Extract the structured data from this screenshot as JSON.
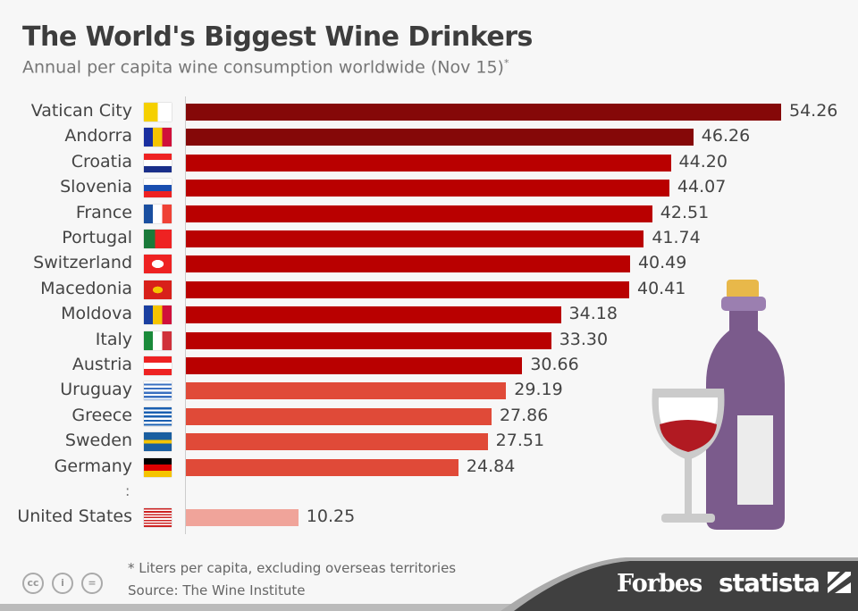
{
  "title": "The World's Biggest Wine Drinkers",
  "subtitle": "Annual per capita wine consumption worldwide (Nov 15)",
  "subtitle_mark": "*",
  "chart_data": {
    "type": "bar",
    "orientation": "horizontal",
    "title": "The World's Biggest Wine Drinkers",
    "xlabel": "",
    "ylabel": "Liters per capita",
    "xlim": [
      0,
      54.26
    ],
    "categories": [
      "Vatican City",
      "Andorra",
      "Croatia",
      "Slovenia",
      "France",
      "Portugal",
      "Switzerland",
      "Macedonia",
      "Moldova",
      "Italy",
      "Austria",
      "Uruguay",
      "Greece",
      "Sweden",
      "Germany",
      "United States"
    ],
    "values": [
      54.26,
      46.26,
      44.2,
      44.07,
      42.51,
      41.74,
      40.49,
      40.41,
      34.18,
      33.3,
      30.66,
      29.19,
      27.86,
      27.51,
      24.84,
      10.25
    ],
    "value_labels": [
      "54.26",
      "46.26",
      "44.20",
      "44.07",
      "42.51",
      "41.74",
      "40.49",
      "40.41",
      "34.18",
      "33.30",
      "30.66",
      "29.19",
      "27.86",
      "27.51",
      "24.84",
      "10.25"
    ],
    "colors": [
      "#850808",
      "#850808",
      "#b90000",
      "#b90000",
      "#b90000",
      "#b90000",
      "#b90000",
      "#b90000",
      "#b90000",
      "#b90000",
      "#b90000",
      "#e04a38",
      "#e04a38",
      "#e04a38",
      "#e04a38",
      "#f0a49a"
    ],
    "gap_marker": ":"
  },
  "footer": {
    "note": "* Liters per capita, excluding overseas territories",
    "source": "Source: The Wine Institute",
    "brand1": "Forbes",
    "brand2": "statista",
    "cc": "cc",
    "by": "i",
    "nd": "="
  }
}
